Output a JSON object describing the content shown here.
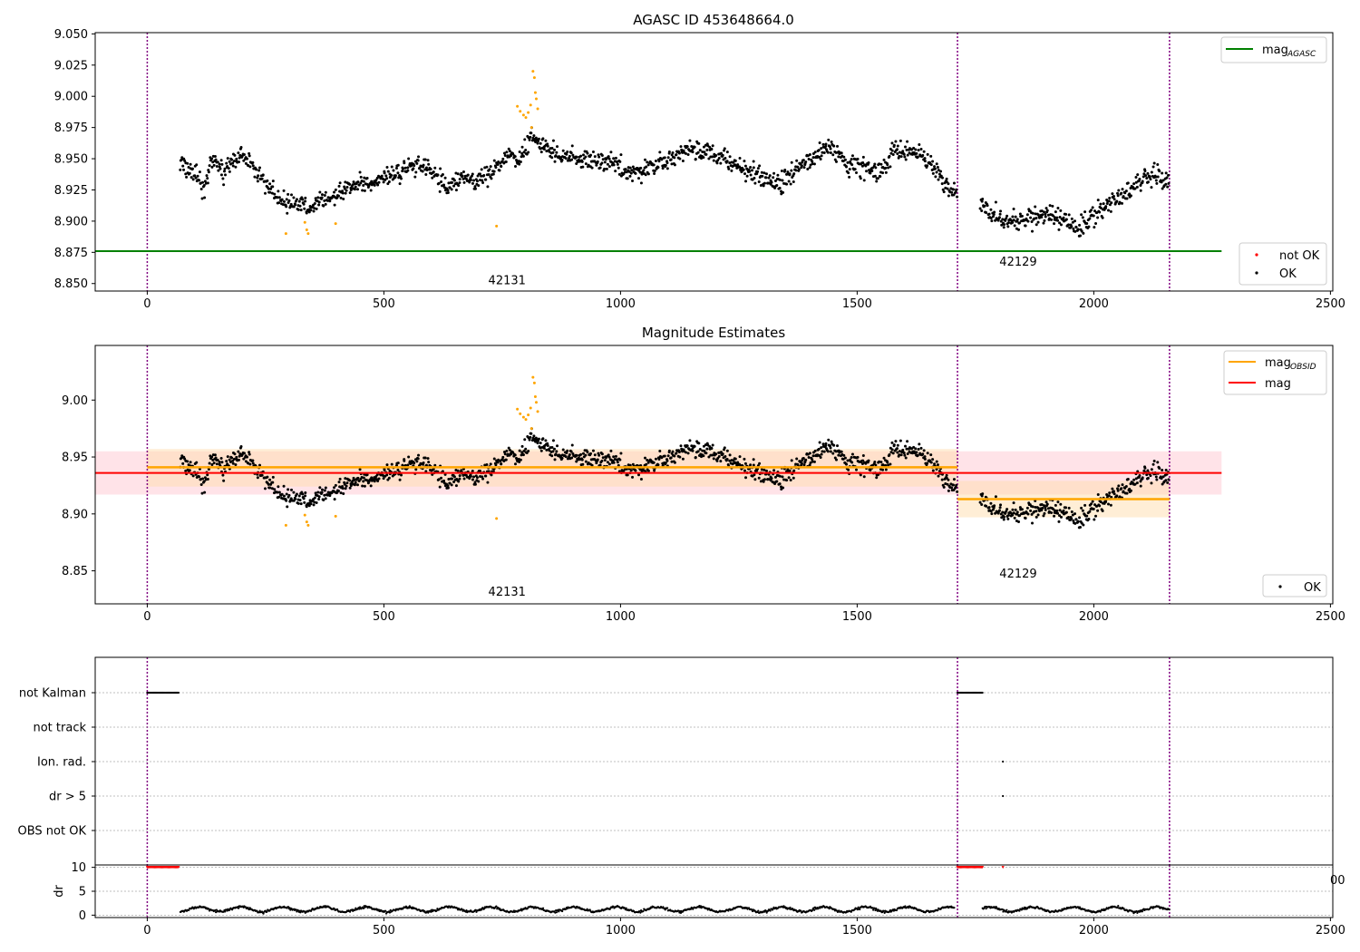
{
  "colors": {
    "ok": "#000000",
    "not_ok": "#ff0000",
    "suspect": "#ffa500",
    "agasc_line": "#008000",
    "mag_line": "#ff0000",
    "obsid_line": "#ffa500",
    "obs_boundary": "#800080",
    "mag_band": "#ffc0cb",
    "obsid_band": "#ffdead"
  },
  "chart_data": [
    {
      "type": "scatter",
      "title": "AGASC ID 453648664.0",
      "xlim": [
        -110,
        2505
      ],
      "ylim": [
        8.844,
        9.051
      ],
      "xticks": [
        0,
        500,
        1000,
        1500,
        2000,
        2500
      ],
      "yticks": [
        8.85,
        8.875,
        8.9,
        8.925,
        8.95,
        8.975,
        9.0,
        9.025,
        9.05
      ],
      "ytick_labels": [
        "8.850",
        "8.875",
        "8.900",
        "8.925",
        "8.950",
        "8.975",
        "9.000",
        "9.025",
        "9.050"
      ],
      "obs_boundaries": [
        0,
        1712,
        2160
      ],
      "obsid_labels": [
        {
          "text": "42131",
          "x": 856,
          "y": 8.853
        },
        {
          "text": "42129",
          "x": 1936,
          "y": 8.868
        }
      ],
      "mag_agasc": {
        "value": 8.876,
        "x_range": [
          -110,
          2270
        ]
      },
      "legend_top": [
        "mag_AGASC"
      ],
      "legend_bottom": [
        "not OK",
        "OK"
      ],
      "series": [
        {
          "name": "OK",
          "segments": [
            {
              "x": [
                [
                  70,
                  8.946
                ],
                [
                  100,
                  8.938
                ],
                [
                  120,
                  8.925
                ],
                [
                  140,
                  8.95
                ],
                [
                  160,
                  8.938
                ],
                [
                  180,
                  8.948
                ],
                [
                  200,
                  8.952
                ],
                [
                  220,
                  8.945
                ],
                [
                  240,
                  8.935
                ],
                [
                  260,
                  8.926
                ],
                [
                  280,
                  8.918
                ],
                [
                  300,
                  8.913
                ],
                [
                  320,
                  8.915
                ],
                [
                  345,
                  8.91
                ],
                [
                  370,
                  8.918
                ],
                [
                  400,
                  8.92
                ],
                [
                  430,
                  8.928
                ],
                [
                  460,
                  8.93
                ],
                [
                  490,
                  8.932
                ],
                [
                  520,
                  8.938
                ],
                [
                  550,
                  8.942
                ],
                [
                  580,
                  8.945
                ],
                [
                  610,
                  8.935
                ],
                [
                  640,
                  8.928
                ],
                [
                  670,
                  8.935
                ],
                [
                  700,
                  8.932
                ],
                [
                  730,
                  8.94
                ],
                [
                  760,
                  8.953
                ],
                [
                  790,
                  8.95
                ],
                [
                  810,
                  8.97
                ],
                [
                  830,
                  8.963
                ],
                [
                  860,
                  8.955
                ],
                [
                  900,
                  8.95
                ],
                [
                  940,
                  8.948
                ],
                [
                  980,
                  8.947
                ],
                [
                  1020,
                  8.938
                ],
                [
                  1060,
                  8.943
                ],
                [
                  1100,
                  8.948
                ],
                [
                  1140,
                  8.957
                ],
                [
                  1180,
                  8.955
                ],
                [
                  1220,
                  8.95
                ],
                [
                  1260,
                  8.94
                ],
                [
                  1300,
                  8.935
                ],
                [
                  1340,
                  8.93
                ],
                [
                  1380,
                  8.945
                ],
                [
                  1420,
                  8.955
                ],
                [
                  1450,
                  8.958
                ],
                [
                  1480,
                  8.945
                ],
                [
                  1520,
                  8.943
                ],
                [
                  1550,
                  8.937
                ],
                [
                  1580,
                  8.96
                ],
                [
                  1610,
                  8.955
                ],
                [
                  1640,
                  8.95
                ],
                [
                  1670,
                  8.942
                ],
                [
                  1690,
                  8.925
                ],
                [
                  1712,
                  8.925
                ]
              ]
            },
            {
              "x": [
                [
                  1760,
                  8.913
                ],
                [
                  1790,
                  8.905
                ],
                [
                  1820,
                  8.9
                ],
                [
                  1860,
                  8.902
                ],
                [
                  1900,
                  8.905
                ],
                [
                  1940,
                  8.9
                ],
                [
                  1970,
                  8.893
                ],
                [
                  2000,
                  8.905
                ],
                [
                  2040,
                  8.915
                ],
                [
                  2080,
                  8.928
                ],
                [
                  2110,
                  8.935
                ],
                [
                  2140,
                  8.938
                ],
                [
                  2160,
                  8.93
                ]
              ]
            }
          ],
          "count": 1600
        },
        {
          "name": "suspect",
          "points": [
            [
              293,
              8.89
            ],
            [
              333,
              8.899
            ],
            [
              337,
              8.893
            ],
            [
              340,
              8.89
            ],
            [
              398,
              8.898
            ],
            [
              738,
              8.896
            ],
            [
              782,
              8.992
            ],
            [
              788,
              8.988
            ],
            [
              795,
              8.985
            ],
            [
              800,
              8.983
            ],
            [
              805,
              8.987
            ],
            [
              810,
              8.993
            ],
            [
              815,
              9.02
            ],
            [
              818,
              9.015
            ],
            [
              820,
              9.003
            ],
            [
              822,
              8.998
            ],
            [
              825,
              8.99
            ],
            [
              812,
              8.975
            ]
          ]
        }
      ]
    },
    {
      "type": "scatter",
      "title": "Magnitude Estimates",
      "xlim": [
        -110,
        2505
      ],
      "ylim": [
        8.821,
        9.048
      ],
      "xticks": [
        0,
        500,
        1000,
        1500,
        2000,
        2500
      ],
      "yticks": [
        8.85,
        8.9,
        8.95,
        9.0
      ],
      "ytick_labels": [
        "8.85",
        "8.90",
        "8.95",
        "9.00"
      ],
      "obs_boundaries": [
        0,
        1712,
        2160
      ],
      "obsid_labels": [
        {
          "text": "42131",
          "x": 856,
          "y": 8.832
        },
        {
          "text": "42129",
          "x": 1936,
          "y": 8.848
        }
      ],
      "mag": {
        "value": 8.936,
        "band": [
          8.917,
          8.955
        ],
        "x_range": [
          -110,
          2270
        ]
      },
      "mag_obsid": [
        {
          "x_range": [
            0,
            1712
          ],
          "value": 8.941,
          "band": [
            8.924,
            8.957
          ]
        },
        {
          "x_range": [
            1712,
            2160
          ],
          "value": 8.913,
          "band": [
            8.897,
            8.929
          ]
        }
      ],
      "legend_top": [
        "mag_OBSID",
        "mag"
      ],
      "legend_bottom": [
        "OK"
      ]
    },
    {
      "type": "scatter",
      "title": "",
      "categories": [
        "not Kalman",
        "not track",
        "Ion. rad.",
        "dr > 5",
        "OBS not OK"
      ],
      "flags": {
        "not Kalman": [
          [
            0,
            68
          ],
          [
            1712,
            1765
          ]
        ],
        "not track": [],
        "Ion. rad.": [
          [
            1808,
            1808
          ]
        ],
        "dr > 5": [
          [
            1808,
            1808
          ]
        ],
        "OBS not OK": []
      },
      "obs_boundaries": [
        0,
        1712,
        2160
      ]
    },
    {
      "type": "line",
      "xlim": [
        -110,
        2505
      ],
      "ylim": [
        -0.5,
        10.5
      ],
      "ylabel": "dr",
      "yticks": [
        0,
        5,
        10
      ],
      "xticks": [
        0,
        500,
        1000,
        1500,
        2000,
        2500
      ],
      "clipped_at_10": [
        [
          0,
          68
        ],
        [
          1712,
          1765
        ],
        [
          1808,
          1808
        ]
      ],
      "clipped_tick": "00",
      "dr_typical": 1.2
    }
  ],
  "subplot_labels": {
    "top_title": "AGASC ID 453648664.0",
    "mid_title": "Magnitude Estimates",
    "legend_mag_agasc": "mag",
    "legend_mag_agasc_sub": "AGASC",
    "legend_not_ok": "not OK",
    "legend_ok": "OK",
    "legend_mag_obsid": "mag",
    "legend_mag_obsid_sub": "OBSID",
    "legend_mag": "mag",
    "dr_label": "dr"
  }
}
